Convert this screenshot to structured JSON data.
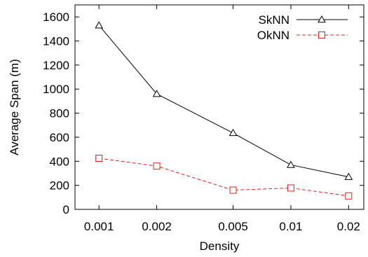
{
  "chart_data": {
    "type": "line",
    "xlabel": "Density",
    "ylabel": "Average Span (m)",
    "x_scale": "log",
    "x": [
      0.001,
      0.002,
      0.005,
      0.01,
      0.02
    ],
    "x_tick_labels": [
      "0.001",
      "0.002",
      "0.005",
      "0.01",
      "0.02"
    ],
    "xlim": [
      0.00075,
      0.024
    ],
    "ylim": [
      0,
      1700
    ],
    "y_ticks": [
      0,
      200,
      400,
      600,
      800,
      1000,
      1200,
      1400,
      1600
    ],
    "y_tick_labels": [
      "0",
      "200",
      "400",
      "600",
      "800",
      "1000",
      "1200",
      "1400",
      "1600"
    ],
    "grid": false,
    "legend_position": "top-right",
    "series": [
      {
        "name": "SkNN",
        "values": [
          1530,
          960,
          635,
          370,
          270
        ],
        "color": "#000000",
        "marker": "triangle",
        "line_style": "solid"
      },
      {
        "name": "OkNN",
        "values": [
          425,
          360,
          160,
          178,
          112
        ],
        "color": "#dd2020",
        "marker": "square",
        "line_style": "dashed"
      }
    ]
  }
}
